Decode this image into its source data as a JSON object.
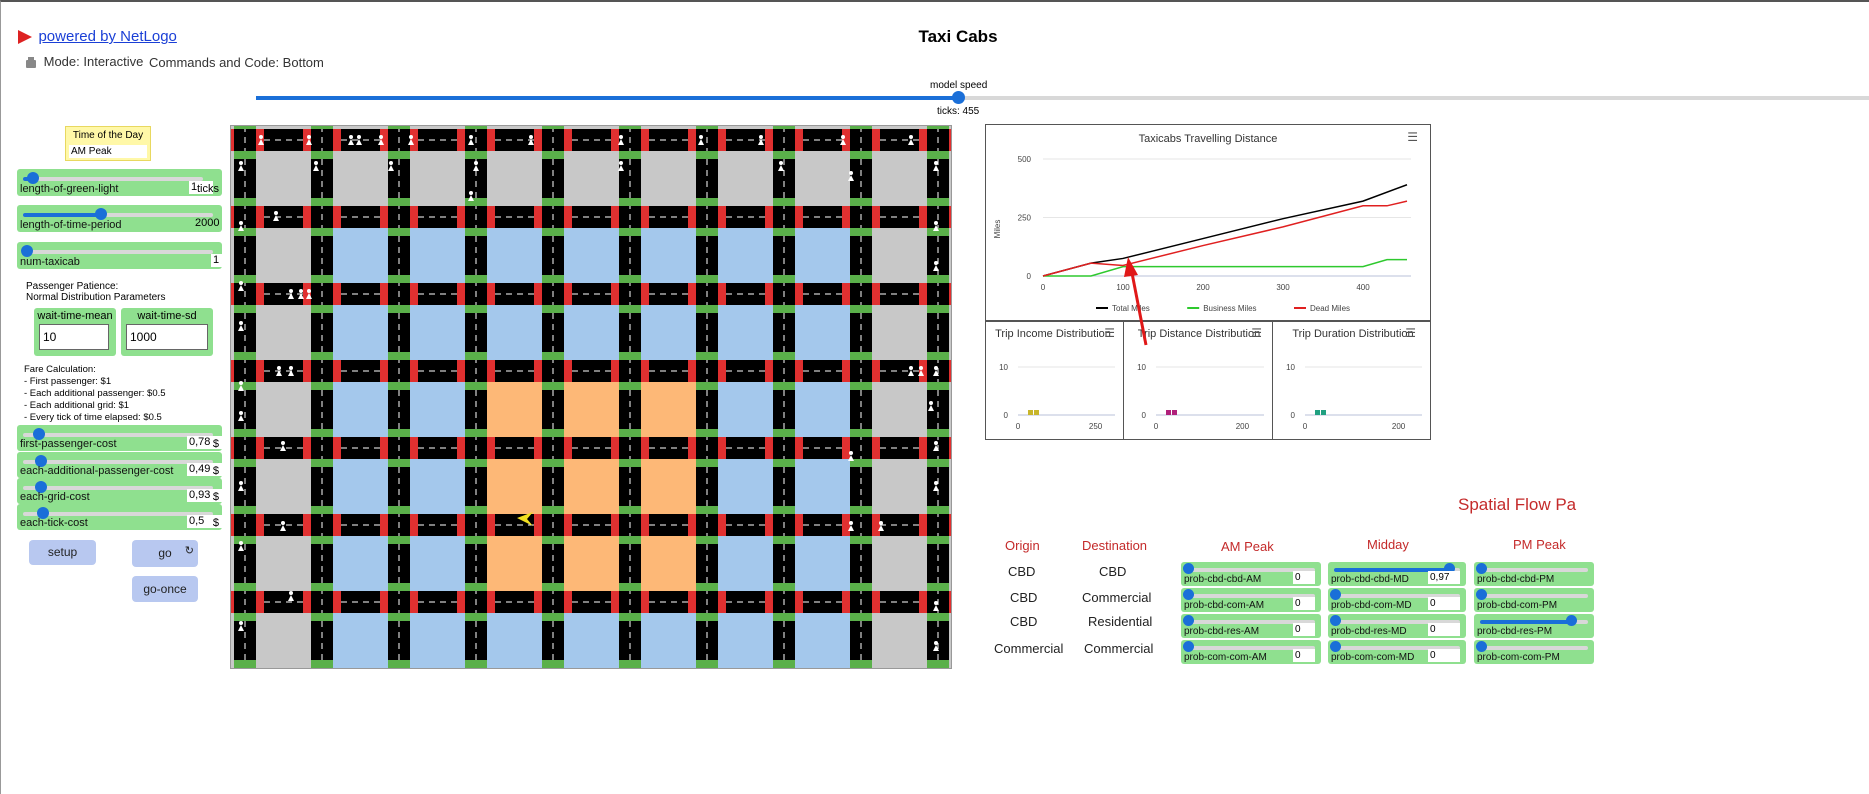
{
  "header": {
    "link": "powered by NetLogo",
    "title": "Taxi Cabs",
    "mode": "Mode: Interactive",
    "commands": "Commands and Code: Bottom"
  },
  "speed": {
    "label": "model speed",
    "ticks": "ticks: 455",
    "value": 0.5
  },
  "time_of_day": {
    "label": "Time of the Day",
    "value": "AM Peak"
  },
  "sliders": [
    {
      "name": "length-of-green-light",
      "value": "1",
      "unit": "ticks",
      "level": 0.02
    },
    {
      "name": "length-of-time-period",
      "value": "2000",
      "unit": "",
      "level": 0.4
    },
    {
      "name": "num-taxicab",
      "value": "1",
      "unit": "",
      "level": 0.0
    }
  ],
  "patience": {
    "line1": "Passenger Patience:",
    "line2": "Normal Distribution Parameters"
  },
  "wait_mean": {
    "label": "wait-time-mean",
    "value": "10"
  },
  "wait_sd": {
    "label": "wait-time-sd",
    "value": "1000"
  },
  "fare": {
    "line1": "Fare Calculation:",
    "line2": "- First passenger: $1",
    "line3": "- Each additional passenger: $0.5",
    "line4": "- Each additional grid: $1",
    "line5": "- Every tick of time elapsed: $0.5"
  },
  "cost_sliders": [
    {
      "name": "first-passenger-cost",
      "value": "0,78",
      "unit": "$",
      "level": 0.08
    },
    {
      "name": "each-additional-passenger-cost",
      "value": "0,49",
      "unit": "$",
      "level": 0.05
    },
    {
      "name": "each-grid-cost",
      "value": "0,93",
      "unit": "$",
      "level": 0.09
    },
    {
      "name": "each-tick-cost",
      "value": "0,5",
      "unit": "$",
      "level": 0.05
    }
  ],
  "buttons": {
    "setup": "setup",
    "go": "go",
    "go_once": "go-once"
  },
  "main_plot": {
    "menu_icon": "hamburger-icon",
    "chart_data": {
      "type": "line",
      "title": "Taxicabs Travelling Distance",
      "ylabel": "Miles",
      "xlim": [
        0,
        460
      ],
      "ylim": [
        0,
        500
      ],
      "xticks": [
        "0",
        "100",
        "200",
        "300",
        "400"
      ],
      "yticks": [
        "0",
        "250",
        "500"
      ],
      "legend_position": "bottom",
      "series": [
        {
          "name": "Total Miles",
          "color": "#000000",
          "points": [
            [
              0,
              0
            ],
            [
              60,
              55
            ],
            [
              100,
              75
            ],
            [
              200,
              160
            ],
            [
              300,
              245
            ],
            [
              400,
              320
            ],
            [
              455,
              390
            ]
          ]
        },
        {
          "name": "Business Miles",
          "color": "#2ec92e",
          "points": [
            [
              0,
              0
            ],
            [
              60,
              0
            ],
            [
              100,
              40
            ],
            [
              200,
              40
            ],
            [
              300,
              40
            ],
            [
              400,
              40
            ],
            [
              430,
              70
            ],
            [
              455,
              70
            ]
          ]
        },
        {
          "name": "Dead Miles",
          "color": "#e02020",
          "points": [
            [
              0,
              0
            ],
            [
              60,
              55
            ],
            [
              100,
              45
            ],
            [
              200,
              130
            ],
            [
              300,
              210
            ],
            [
              400,
              300
            ],
            [
              430,
              300
            ],
            [
              455,
              320
            ]
          ]
        }
      ]
    }
  },
  "hist_plots": [
    {
      "title": "Trip Income Distribution",
      "ymax": "10",
      "xticks": [
        "0",
        "250"
      ],
      "color": "#c8b62a"
    },
    {
      "title": "Trip Distance Distribution",
      "ymax": "10",
      "xticks": [
        "0",
        "200"
      ],
      "color": "#b0207a"
    },
    {
      "title": "Trip Duration Distribution",
      "ymax": "10",
      "xticks": [
        "0",
        "200"
      ],
      "color": "#20a080"
    }
  ],
  "spatial": {
    "title": "Spatial Flow Pa",
    "origin_header": "Origin",
    "destination_header": "Destination",
    "rows": [
      {
        "origin": "CBD",
        "destination": "CBD"
      },
      {
        "origin": "CBD",
        "destination": "Commercial"
      },
      {
        "origin": "CBD",
        "destination": "Residential"
      },
      {
        "origin": "Commercial",
        "destination": "Commercial"
      }
    ],
    "am_header": "AM Peak",
    "md_header": "Midday",
    "pm_header": "PM Peak",
    "am": [
      {
        "name": "prob-cbd-cbd-AM",
        "value": "0",
        "level": 0.0
      },
      {
        "name": "prob-cbd-com-AM",
        "value": "0",
        "level": 0.0
      },
      {
        "name": "prob-cbd-res-AM",
        "value": "0",
        "level": 0.0
      },
      {
        "name": "prob-com-com-AM",
        "value": "0",
        "level": 0.0
      }
    ],
    "md": [
      {
        "name": "prob-cbd-cbd-MD",
        "value": "0,97",
        "level": 0.97
      },
      {
        "name": "prob-cbd-com-MD",
        "value": "0",
        "level": 0.0
      },
      {
        "name": "prob-cbd-res-MD",
        "value": "0",
        "level": 0.0
      },
      {
        "name": "prob-com-com-MD",
        "value": "0",
        "level": 0.0
      }
    ],
    "pm": [
      {
        "name": "prob-cbd-cbd-PM",
        "level": 0.0
      },
      {
        "name": "prob-cbd-com-PM",
        "level": 0.0
      },
      {
        "name": "prob-cbd-res-PM",
        "level": 0.9
      },
      {
        "name": "prob-com-com-PM",
        "level": 0.0
      }
    ]
  }
}
